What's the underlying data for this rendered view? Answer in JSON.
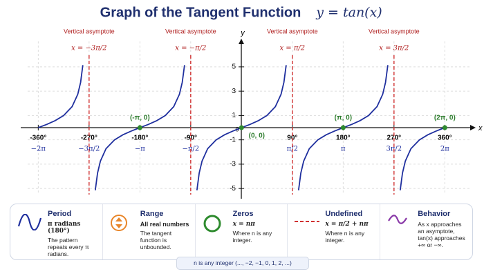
{
  "chart_data": {
    "type": "line",
    "title": "Graph of the Tangent Function",
    "subtitle": "y = tan(x)",
    "x_label": "x",
    "y_label": "y",
    "origin_label": "0",
    "x": [
      -360,
      -345,
      -330,
      -315,
      -300,
      -290,
      -285,
      -281,
      -270,
      -259,
      -255,
      -250,
      -240,
      -225,
      -210,
      -195,
      -180,
      -165,
      -150,
      -135,
      -120,
      -110,
      -105,
      -101,
      -90,
      -79,
      -75,
      -70,
      -60,
      -45,
      -30,
      -15,
      0,
      15,
      30,
      45,
      60,
      70,
      75,
      79,
      90,
      101,
      105,
      110,
      120,
      135,
      150,
      165,
      180,
      195,
      210,
      225,
      240,
      250,
      255,
      259,
      270,
      281,
      285,
      290,
      300,
      315,
      330,
      345,
      360
    ],
    "values": [
      0,
      0.27,
      0.58,
      1,
      1.73,
      2.75,
      3.73,
      5.14,
      null,
      -5.14,
      -3.73,
      -2.75,
      -1.73,
      -1,
      -0.58,
      -0.27,
      0,
      0.27,
      0.58,
      1,
      1.73,
      2.75,
      3.73,
      5.14,
      null,
      -5.14,
      -3.73,
      -2.75,
      -1.73,
      -1,
      -0.58,
      -0.27,
      0,
      0.27,
      0.58,
      1,
      1.73,
      2.75,
      3.73,
      5.14,
      null,
      -5.14,
      -3.73,
      -2.75,
      -1.73,
      -1,
      -0.58,
      -0.27,
      0,
      0.27,
      0.58,
      1,
      1.73,
      2.75,
      3.73,
      5.14,
      null,
      -5.14,
      -3.73,
      -2.75,
      -1.73,
      -1,
      -0.58,
      -0.27,
      0
    ],
    "color": "#1f2f9e",
    "xlim": [
      -380,
      400
    ],
    "ylim": [
      -5.5,
      8
    ],
    "xticks": [
      {
        "value": -360,
        "label": "-360°"
      },
      {
        "value": -270,
        "label": "-270°"
      },
      {
        "value": -180,
        "label": "-180°"
      },
      {
        "value": -90,
        "label": "-90°"
      },
      {
        "value": 90,
        "label": "90°"
      },
      {
        "value": 180,
        "label": "180°"
      },
      {
        "value": 270,
        "label": "270°"
      },
      {
        "value": 360,
        "label": "360°"
      }
    ],
    "xtick_radian_labels": [
      "−2π",
      "−3π/2",
      "−π",
      "−π/2",
      "π/2",
      "π",
      "3π/2",
      "2π"
    ],
    "yticks": [
      -5,
      -3,
      -1,
      1,
      3,
      5
    ],
    "grid": true,
    "asymptotes": [
      {
        "x": -270,
        "label": "Vertical asymptote",
        "formula": "x = −3π/2"
      },
      {
        "x": -90,
        "label": "Vertical asymptote",
        "formula": "x = −π/2"
      },
      {
        "x": 90,
        "label": "Vertical asymptote",
        "formula": "x = π/2"
      },
      {
        "x": 270,
        "label": "Vertical asymptote",
        "formula": "x = 3π/2"
      }
    ],
    "zeros": [
      {
        "x": -180,
        "y": 0,
        "label": "(-π, 0)"
      },
      {
        "x": 0,
        "y": 0,
        "label": "(0, 0)"
      },
      {
        "x": 180,
        "y": 0,
        "label": "(π, 0)"
      },
      {
        "x": 360,
        "y": 0,
        "label": "(2π, 0)"
      }
    ]
  },
  "cards": [
    {
      "title": "Period",
      "headline": "π radians (180°)",
      "text": "The pattern repeats every π radians."
    },
    {
      "title": "Range",
      "headline": "All real numbers",
      "text": "The tangent function is unbounded."
    },
    {
      "title": "Zeros",
      "headline": "x = nπ",
      "text": "Where n is any integer."
    },
    {
      "title": "Undefined",
      "headline": "x = π/2 + nπ",
      "text": "Where n is any integer."
    },
    {
      "title": "Behavior",
      "headline": "",
      "text": "As x approaches an asymptote, tan(x) approaches +∞ or −∞."
    }
  ],
  "footer": "n is any integer (..., −2, −1, 0, 1, 2, ...)"
}
